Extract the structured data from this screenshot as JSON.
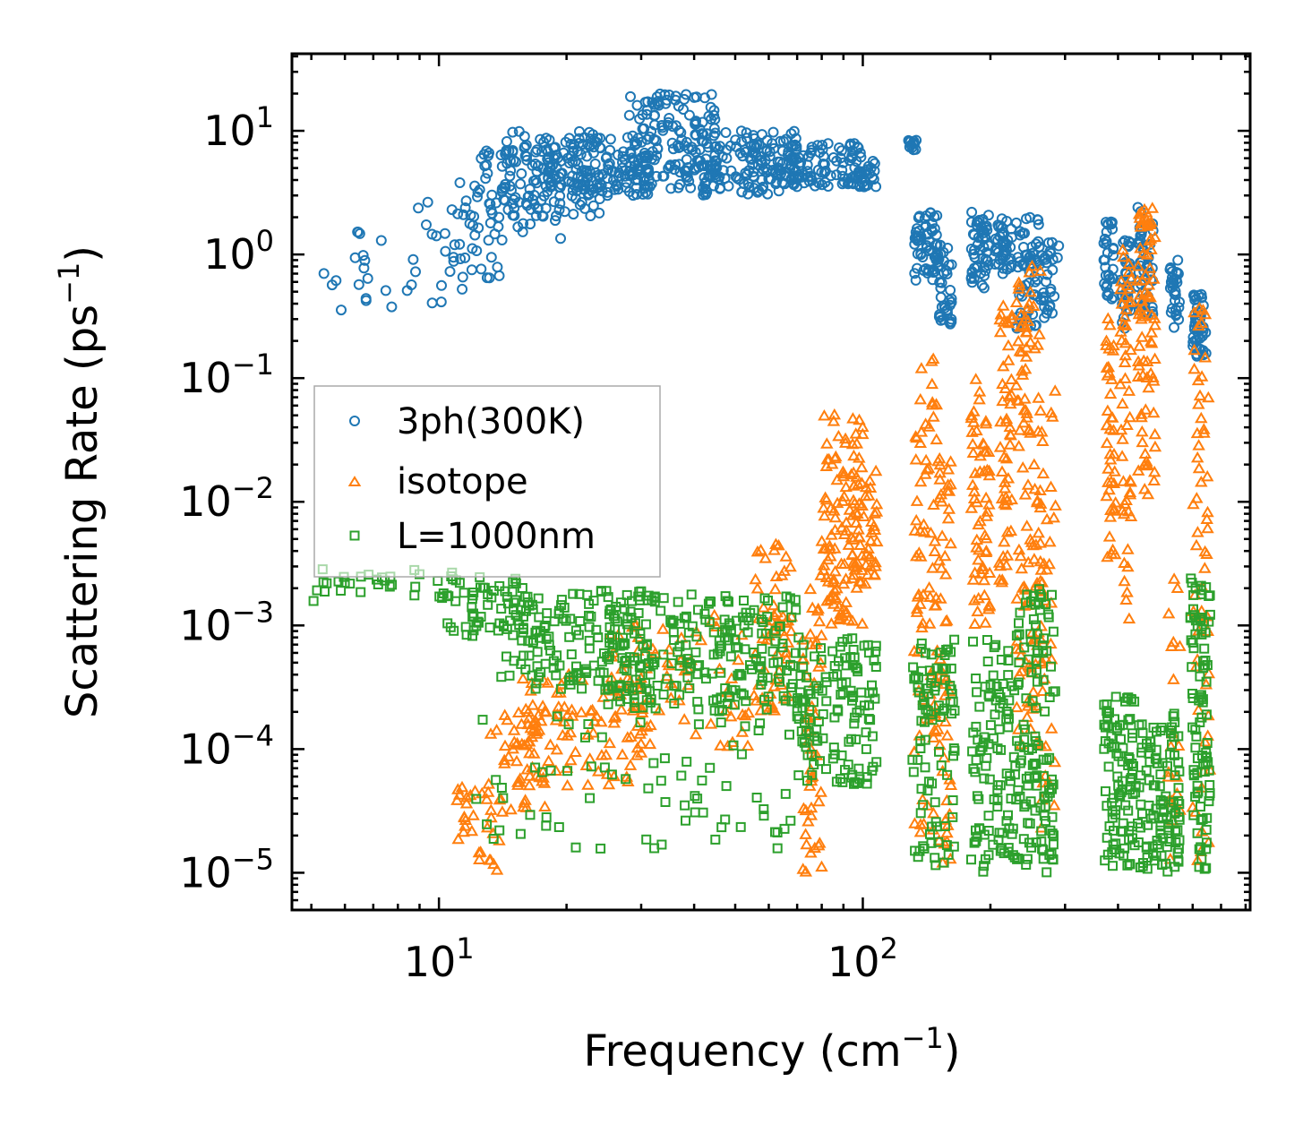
{
  "chart_data": {
    "type": "scatter",
    "title": "",
    "xlabel": "Frequency (cm",
    "xlabel_sup": "−1",
    "xlabel_close": ")",
    "ylabel": "Scattering Rate (ps",
    "ylabel_sup": "−1",
    "ylabel_close": ")",
    "xscale": "log",
    "yscale": "log",
    "xlim": [
      4.5,
      820
    ],
    "ylim": [
      5e-06,
      42
    ],
    "x_ticks": [
      {
        "value": 10,
        "base": "10",
        "exp": "1"
      },
      {
        "value": 100,
        "base": "10",
        "exp": "2"
      }
    ],
    "y_ticks": [
      {
        "value": 10,
        "base": "10",
        "exp": "1"
      },
      {
        "value": 1,
        "base": "10",
        "exp": "0"
      },
      {
        "value": 0.1,
        "base": "10",
        "exp": "−1"
      },
      {
        "value": 0.01,
        "base": "10",
        "exp": "−2"
      },
      {
        "value": 0.001,
        "base": "10",
        "exp": "−3"
      },
      {
        "value": 0.0001,
        "base": "10",
        "exp": "−4"
      },
      {
        "value": 1e-05,
        "base": "10",
        "exp": "−5"
      }
    ],
    "legend_position": "center-left",
    "series": [
      {
        "name": "3ph(300K)",
        "marker": "circle",
        "color": "#1f77b4",
        "clusters": [
          {
            "x": [
              5,
              8
            ],
            "y": [
              0.3,
              1.8
            ],
            "n": 16
          },
          {
            "x": [
              7,
              12
            ],
            "y": [
              0.4,
              2.8
            ],
            "n": 20
          },
          {
            "x": [
              10,
              14
            ],
            "y": [
              0.6,
              4
            ],
            "n": 30
          },
          {
            "x": [
              12,
              20
            ],
            "y": [
              1.3,
              7
            ],
            "n": 60
          },
          {
            "x": [
              14,
              24
            ],
            "y": [
              2,
              10
            ],
            "n": 110
          },
          {
            "x": [
              18,
              32
            ],
            "y": [
              3,
              9
            ],
            "n": 130
          },
          {
            "x": [
              28,
              45
            ],
            "y": [
              3,
              20
            ],
            "n": 150
          },
          {
            "x": [
              40,
              70
            ],
            "y": [
              3,
              10
            ],
            "n": 150
          },
          {
            "x": [
              65,
              100
            ],
            "y": [
              3.5,
              8
            ],
            "n": 90
          },
          {
            "x": [
              95,
              108
            ],
            "y": [
              3.5,
              6.5
            ],
            "n": 25
          },
          {
            "x": [
              128,
              134
            ],
            "y": [
              7,
              9
            ],
            "n": 14
          },
          {
            "x": [
              132,
              150
            ],
            "y": [
              0.6,
              2.2
            ],
            "n": 55
          },
          {
            "x": [
              150,
              162
            ],
            "y": [
              0.25,
              1.2
            ],
            "n": 40
          },
          {
            "x": [
              180,
              198
            ],
            "y": [
              0.5,
              2.5
            ],
            "n": 50
          },
          {
            "x": [
              205,
              225
            ],
            "y": [
              0.7,
              2.2
            ],
            "n": 40
          },
          {
            "x": [
              230,
              262
            ],
            "y": [
              0.25,
              2
            ],
            "n": 60
          },
          {
            "x": [
              262,
              290
            ],
            "y": [
              0.3,
              1.3
            ],
            "n": 30
          },
          {
            "x": [
              370,
              390
            ],
            "y": [
              0.4,
              2
            ],
            "n": 35
          },
          {
            "x": [
              405,
              430
            ],
            "y": [
              0.25,
              1.4
            ],
            "n": 35
          },
          {
            "x": [
              445,
              485
            ],
            "y": [
              0.3,
              2.5
            ],
            "n": 50
          },
          {
            "x": [
              530,
              560
            ],
            "y": [
              0.25,
              0.9
            ],
            "n": 30
          },
          {
            "x": [
              600,
              650
            ],
            "y": [
              0.15,
              0.5
            ],
            "n": 45
          }
        ]
      },
      {
        "name": "isotope",
        "marker": "triangle",
        "color": "#ff7f0e",
        "clusters": [
          {
            "x": [
              11,
              14
            ],
            "y": [
              1e-05,
              5e-05
            ],
            "n": 30
          },
          {
            "x": [
              13,
              18
            ],
            "y": [
              3e-05,
              0.0002
            ],
            "n": 45
          },
          {
            "x": [
              15,
              30
            ],
            "y": [
              5e-05,
              0.0004
            ],
            "n": 90
          },
          {
            "x": [
              25,
              55
            ],
            "y": [
              0.0001,
              0.0012
            ],
            "n": 80
          },
          {
            "x": [
              55,
              68
            ],
            "y": [
              0.0002,
              0.006
            ],
            "n": 60
          },
          {
            "x": [
              72,
              80
            ],
            "y": [
              1e-05,
              0.004
            ],
            "n": 50
          },
          {
            "x": [
              80,
              100
            ],
            "y": [
              0.001,
              0.05
            ],
            "n": 110
          },
          {
            "x": [
              95,
              108
            ],
            "y": [
              0.002,
              0.02
            ],
            "n": 40
          },
          {
            "x": [
              132,
              150
            ],
            "y": [
              2e-05,
              0.15
            ],
            "n": 80
          },
          {
            "x": [
              150,
              162
            ],
            "y": [
              1e-05,
              0.03
            ],
            "n": 50
          },
          {
            "x": [
              180,
              200
            ],
            "y": [
              0.001,
              0.1
            ],
            "n": 60
          },
          {
            "x": [
              210,
              225
            ],
            "y": [
              0.002,
              0.4
            ],
            "n": 50
          },
          {
            "x": [
              230,
              265
            ],
            "y": [
              0.0001,
              0.8
            ],
            "n": 110
          },
          {
            "x": [
              262,
              285
            ],
            "y": [
              2e-05,
              0.1
            ],
            "n": 40
          },
          {
            "x": [
              375,
              395
            ],
            "y": [
              0.003,
              0.3
            ],
            "n": 40
          },
          {
            "x": [
              405,
              430
            ],
            "y": [
              0.001,
              1.2
            ],
            "n": 50
          },
          {
            "x": [
              445,
              490
            ],
            "y": [
              0.01,
              2.8
            ],
            "n": 80
          },
          {
            "x": [
              520,
              560
            ],
            "y": [
              1e-05,
              0.003
            ],
            "n": 20
          },
          {
            "x": [
              600,
              660
            ],
            "y": [
              1e-05,
              0.4
            ],
            "n": 60
          }
        ]
      },
      {
        "name": "L=1000nm",
        "marker": "square",
        "color": "#2ca02c",
        "clusters": [
          {
            "x": [
              5,
              11
            ],
            "y": [
              0.0015,
              0.003
            ],
            "n": 30
          },
          {
            "x": [
              10,
              16
            ],
            "y": [
              0.0008,
              0.0025
            ],
            "n": 50
          },
          {
            "x": [
              14,
              30
            ],
            "y": [
              0.0003,
              0.002
            ],
            "n": 140
          },
          {
            "x": [
              25,
              70
            ],
            "y": [
              0.0002,
              0.0018
            ],
            "n": 220
          },
          {
            "x": [
              12,
              70
            ],
            "y": [
              1.5e-05,
              0.0002
            ],
            "n": 70
          },
          {
            "x": [
              70,
              95
            ],
            "y": [
              5e-05,
              0.0008
            ],
            "n": 90
          },
          {
            "x": [
              95,
              108
            ],
            "y": [
              5e-05,
              0.0007
            ],
            "n": 40
          },
          {
            "x": [
              130,
              165
            ],
            "y": [
              1e-05,
              0.0008
            ],
            "n": 90
          },
          {
            "x": [
              180,
              230
            ],
            "y": [
              1e-05,
              0.0008
            ],
            "n": 100
          },
          {
            "x": [
              230,
              285
            ],
            "y": [
              1e-05,
              0.002
            ],
            "n": 120
          },
          {
            "x": [
              370,
              440
            ],
            "y": [
              1e-05,
              0.0003
            ],
            "n": 90
          },
          {
            "x": [
              440,
              560
            ],
            "y": [
              1e-05,
              0.0002
            ],
            "n": 110
          },
          {
            "x": [
              590,
              660
            ],
            "y": [
              1e-05,
              0.0025
            ],
            "n": 90
          }
        ]
      }
    ]
  },
  "colors": {
    "blue": "#1f77b4",
    "orange": "#ff7f0e",
    "green": "#2ca02c"
  }
}
